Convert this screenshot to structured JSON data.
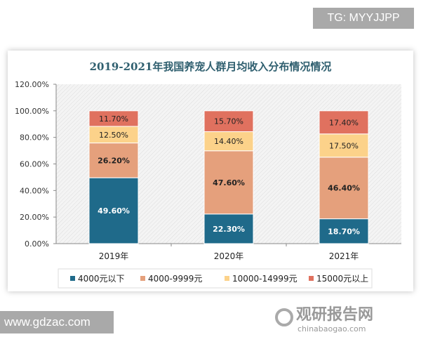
{
  "header_tag": "TG: MYYJJPP",
  "footer_site": "www.gdzac.com",
  "watermark": {
    "cn": "观研报告网",
    "en": "chinabaogao.com"
  },
  "chart_data": {
    "type": "bar",
    "stacked": true,
    "title": "2019-2021年我国养宠人群月均收入分布情况情况",
    "categories": [
      "2019年",
      "2020年",
      "2021年"
    ],
    "ylim": [
      0,
      120
    ],
    "yticks": [
      "0.00%",
      "20.00%",
      "40.00%",
      "60.00%",
      "80.00%",
      "100.00%",
      "120.00%"
    ],
    "grid": false,
    "legend_position": "bottom",
    "series": [
      {
        "name": "4000元以下",
        "color": "#1f6a8a",
        "values": [
          49.6,
          22.3,
          18.7
        ],
        "labels": [
          "49.60%",
          "22.30%",
          "18.70%"
        ]
      },
      {
        "name": "4000-9999元",
        "color": "#e5a07c",
        "values": [
          26.2,
          47.6,
          46.4
        ],
        "labels": [
          "26.20%",
          "47.60%",
          "46.40%"
        ]
      },
      {
        "name": "10000-14999元",
        "color": "#fcd28a",
        "values": [
          12.5,
          14.4,
          17.5
        ],
        "labels": [
          "12.50%",
          "14.40%",
          "17.50%"
        ]
      },
      {
        "name": "15000元以上",
        "color": "#e0715f",
        "values": [
          11.7,
          15.7,
          17.4
        ],
        "labels": [
          "11.70%",
          "15.70%",
          "17.40%"
        ]
      }
    ]
  }
}
